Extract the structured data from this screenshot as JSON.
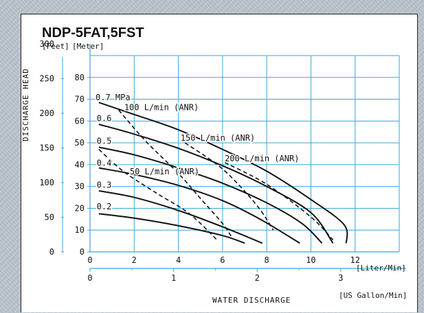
{
  "chart_data": {
    "type": "line",
    "title": "NDP-5FAT,5FST",
    "ylabel": "DISCHARGE HEAD",
    "xlabel": "WATER DISCHARGE",
    "y_units": [
      "[Feet]",
      "[Meter]"
    ],
    "x_units": [
      "[Liter/Min]",
      "[US Gallon/Min]"
    ],
    "x_liter": {
      "range": [
        0,
        14
      ],
      "ticks": [
        "0",
        "2",
        "4",
        "6",
        "8",
        "10",
        "12"
      ]
    },
    "x_gallon": {
      "range": [
        0,
        3.7
      ],
      "ticks": [
        "0",
        "1",
        "2",
        "3"
      ]
    },
    "y_meter": {
      "range": [
        0,
        90
      ],
      "ticks": [
        "0",
        "10",
        "20",
        "30",
        "40",
        "50",
        "60",
        "70",
        "80"
      ]
    },
    "y_feet": {
      "range": [
        0,
        300
      ],
      "ticks": [
        "0",
        "50",
        "100",
        "150",
        "200",
        "250",
        "300"
      ]
    },
    "grid": true,
    "series": [
      {
        "name": "0.7 MPa",
        "kind": "pressure",
        "points": [
          [
            0.4,
            68.5
          ],
          [
            2,
            63
          ],
          [
            4,
            56
          ],
          [
            6,
            47
          ],
          [
            8,
            37
          ],
          [
            10,
            24
          ],
          [
            11.5,
            12.5
          ],
          [
            11.6,
            4
          ]
        ]
      },
      {
        "name": "0.6",
        "kind": "pressure",
        "points": [
          [
            0.4,
            58.5
          ],
          [
            2,
            54
          ],
          [
            4,
            47.5
          ],
          [
            6,
            39.5
          ],
          [
            8,
            30
          ],
          [
            10,
            18
          ],
          [
            11,
            4
          ]
        ]
      },
      {
        "name": "0.5",
        "kind": "pressure",
        "points": [
          [
            0.4,
            48
          ],
          [
            2,
            44.5
          ],
          [
            4,
            38.5
          ],
          [
            6,
            31.5
          ],
          [
            8,
            22.5
          ],
          [
            9.6,
            13
          ],
          [
            10.5,
            4
          ]
        ]
      },
      {
        "name": "0.4",
        "kind": "pressure",
        "points": [
          [
            0.4,
            38.5
          ],
          [
            2,
            35.5
          ],
          [
            4,
            30.5
          ],
          [
            6,
            23.5
          ],
          [
            7.7,
            15
          ],
          [
            9.5,
            4
          ]
        ]
      },
      {
        "name": "0.3",
        "kind": "pressure",
        "points": [
          [
            0.4,
            28
          ],
          [
            2,
            25
          ],
          [
            4,
            19
          ],
          [
            6,
            11.5
          ],
          [
            7.8,
            4
          ]
        ]
      },
      {
        "name": "0.2",
        "kind": "pressure",
        "points": [
          [
            0.4,
            17.5
          ],
          [
            2,
            15.5
          ],
          [
            4,
            12
          ],
          [
            6,
            7.5
          ],
          [
            7,
            4
          ]
        ]
      },
      {
        "name": "100 L/min (ANR)",
        "kind": "air",
        "points": [
          [
            1.3,
            65
          ],
          [
            2.5,
            51
          ],
          [
            4,
            36
          ],
          [
            5,
            24.5
          ],
          [
            6,
            13
          ],
          [
            6.4,
            7
          ]
        ]
      },
      {
        "name": "150 L/min (ANR)",
        "kind": "air",
        "points": [
          [
            4.3,
            50
          ],
          [
            6,
            38
          ],
          [
            7.5,
            22
          ],
          [
            8.3,
            10
          ]
        ]
      },
      {
        "name": "200 L/min (ANR)",
        "kind": "air",
        "points": [
          [
            6.1,
            41
          ],
          [
            8,
            31
          ],
          [
            10,
            16
          ],
          [
            11,
            5.5
          ]
        ]
      },
      {
        "name": "50 L/min (ANR)",
        "kind": "air",
        "points": [
          [
            0.4,
            47
          ],
          [
            1.5,
            37
          ],
          [
            3,
            27
          ],
          [
            4.5,
            17.5
          ],
          [
            5.8,
            5
          ]
        ]
      }
    ],
    "labels": [
      {
        "text": "0.7 MPa",
        "x": 0.25,
        "y": 69.5
      },
      {
        "text": "0.6",
        "x": 0.3,
        "y": 60
      },
      {
        "text": "0.5",
        "x": 0.3,
        "y": 49.5
      },
      {
        "text": "0.4",
        "x": 0.3,
        "y": 39.5
      },
      {
        "text": "0.3",
        "x": 0.3,
        "y": 29.5
      },
      {
        "text": "0.2",
        "x": 0.3,
        "y": 19.5
      },
      {
        "text": "100 L/min (ANR)",
        "x": 1.55,
        "y": 65
      },
      {
        "text": "150 L/min (ANR)",
        "x": 4.1,
        "y": 51
      },
      {
        "text": "200 L/min (ANR)",
        "x": 6.1,
        "y": 41.5
      },
      {
        "text": "50 L/min (ANR)",
        "x": 1.8,
        "y": 35.5
      }
    ]
  },
  "colors": {
    "grid": "#3aa6d8",
    "curve": "#111111",
    "frame": "#111111"
  }
}
